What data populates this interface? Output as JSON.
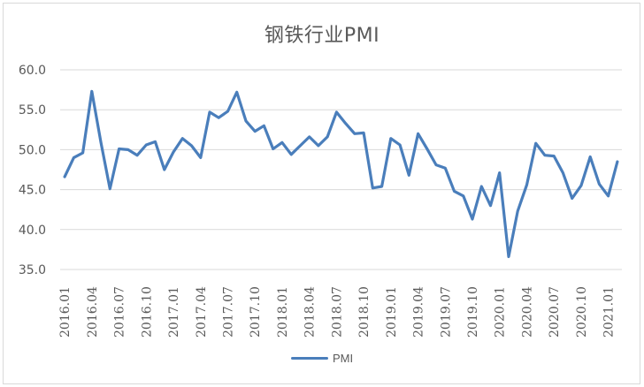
{
  "chart_data": {
    "type": "line",
    "title": "钢铁行业PMI",
    "xlabel": "",
    "ylabel": "",
    "ylim": [
      35.0,
      60.0
    ],
    "yticks": [
      "60.0",
      "55.0",
      "50.0",
      "45.0",
      "40.0",
      "35.0"
    ],
    "ytick_values": [
      60,
      55,
      50,
      45,
      40,
      35
    ],
    "grid": true,
    "legend_position": "bottom",
    "xtick_labels": [
      "2016.01",
      "2016.04",
      "2016.07",
      "2016.10",
      "2017.01",
      "2017.04",
      "2017.07",
      "2017.10",
      "2018.01",
      "2018.04",
      "2018.07",
      "2018.10",
      "2019.01",
      "2019.04",
      "2019.07",
      "2019.10",
      "2020.01",
      "2020.04",
      "2020.07",
      "2020.10",
      "2021.01"
    ],
    "categories": [
      "2016.01",
      "2016.02",
      "2016.03",
      "2016.04",
      "2016.05",
      "2016.06",
      "2016.07",
      "2016.08",
      "2016.09",
      "2016.10",
      "2016.11",
      "2016.12",
      "2017.01",
      "2017.02",
      "2017.03",
      "2017.04",
      "2017.05",
      "2017.06",
      "2017.07",
      "2017.08",
      "2017.09",
      "2017.10",
      "2017.11",
      "2017.12",
      "2018.01",
      "2018.02",
      "2018.03",
      "2018.04",
      "2018.05",
      "2018.06",
      "2018.07",
      "2018.08",
      "2018.09",
      "2018.10",
      "2018.11",
      "2018.12",
      "2019.01",
      "2019.02",
      "2019.03",
      "2019.04",
      "2019.05",
      "2019.06",
      "2019.07",
      "2019.08",
      "2019.09",
      "2019.10",
      "2019.11",
      "2019.12",
      "2020.01",
      "2020.02",
      "2020.03",
      "2020.04",
      "2020.05",
      "2020.06",
      "2020.07",
      "2020.08",
      "2020.09",
      "2020.10",
      "2020.11",
      "2020.12",
      "2021.01",
      "2021.02"
    ],
    "series": [
      {
        "name": "PMI",
        "color": "#4a7ebb",
        "values": [
          46.6,
          49.0,
          49.6,
          57.3,
          50.9,
          45.1,
          50.1,
          50.0,
          49.3,
          50.6,
          51.0,
          47.5,
          49.7,
          51.4,
          50.5,
          49.0,
          54.7,
          54.0,
          54.8,
          57.2,
          53.6,
          52.3,
          53.0,
          50.1,
          50.9,
          49.4,
          50.5,
          51.6,
          50.5,
          51.6,
          54.7,
          53.3,
          52.0,
          52.1,
          45.2,
          45.4,
          51.4,
          50.6,
          46.8,
          52.0,
          50.1,
          48.1,
          47.7,
          44.8,
          44.2,
          41.3,
          45.4,
          43.0,
          47.1,
          36.6,
          42.3,
          45.6,
          50.8,
          49.3,
          49.2,
          47.1,
          43.9,
          45.5,
          49.1,
          45.7,
          44.2,
          48.5
        ]
      }
    ]
  },
  "legend": {
    "label": "PMI"
  },
  "colors": {
    "line": "#4a7ebb",
    "grid": "#d9d9d9",
    "text": "#595959"
  }
}
